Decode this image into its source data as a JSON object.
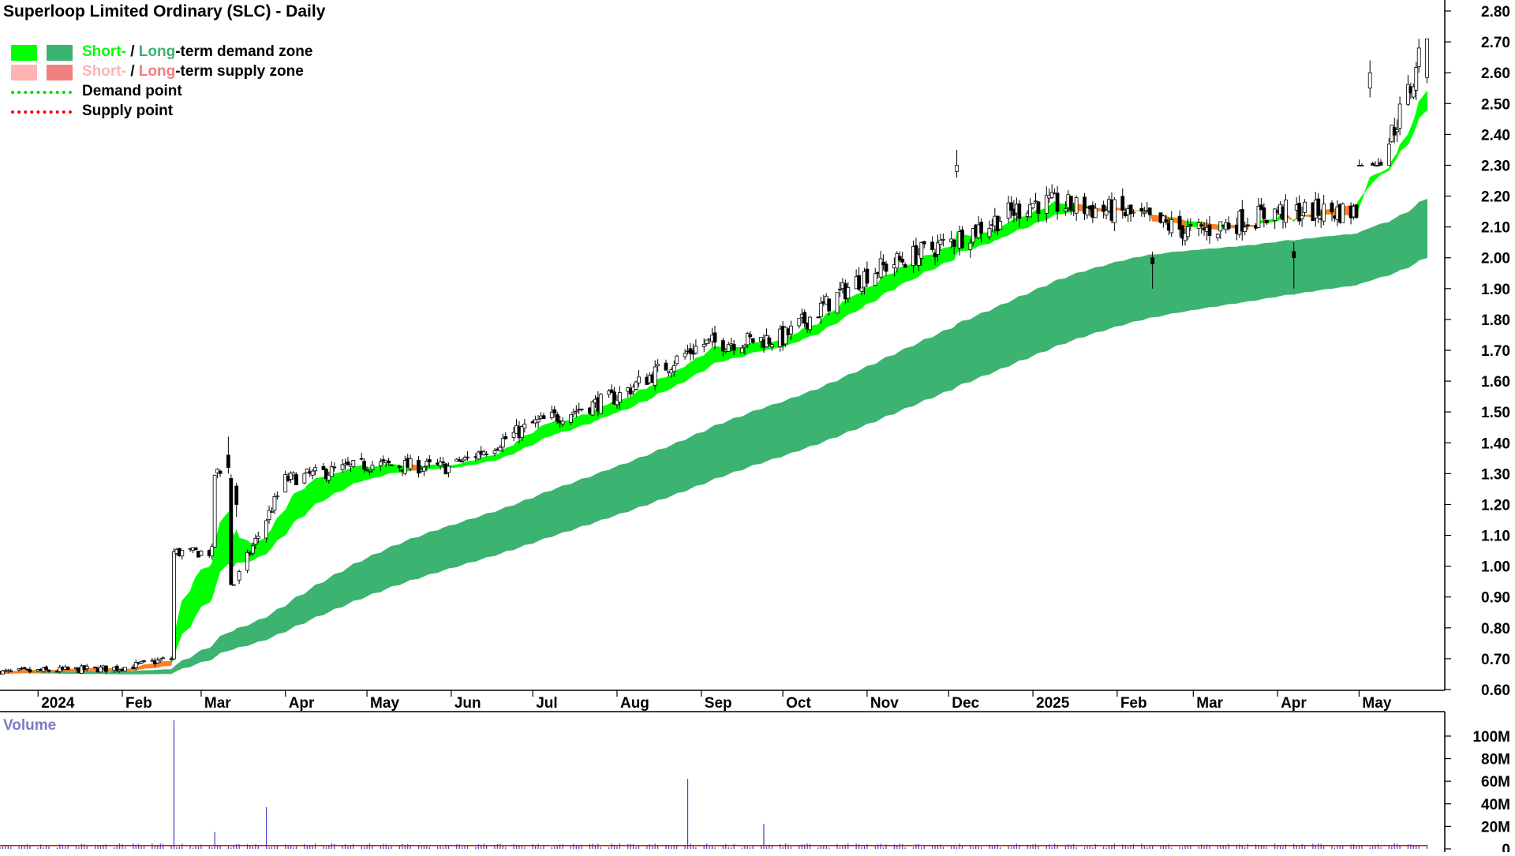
{
  "title": "Superloop Limited Ordinary (SLC) - Daily",
  "legend": {
    "demand_zone": {
      "short": "Short-",
      "sep": " / ",
      "long": "Long",
      "rest": "-term demand zone",
      "short_color": "#00ff00",
      "long_color": "#3cb371"
    },
    "supply_zone": {
      "short": "Short-",
      "sep": " / ",
      "long": "Long",
      "rest": "-term supply zone",
      "short_color": "#ffb3b3",
      "long_color": "#f08080"
    },
    "demand_point": {
      "label": "Demand point",
      "color": "#00dd00"
    },
    "supply_point": {
      "label": "Supply point",
      "color": "#ff0000"
    }
  },
  "volume_label": "Volume",
  "colors": {
    "short_demand": "#00ff00",
    "long_demand": "#3cb371",
    "supply_band": "#ff7f27",
    "volume_bar": "#4040c0",
    "volume_line": "#ff0000",
    "volume_label": "#7b7bc4"
  },
  "chart_data": [
    {
      "type": "candlestick",
      "title": "Superloop Limited Ordinary (SLC) - Daily",
      "x_tick_labels": [
        "2024",
        "Feb",
        "Mar",
        "Apr",
        "May",
        "Jun",
        "Jul",
        "Aug",
        "Sep",
        "Oct",
        "Nov",
        "Dec",
        "2025",
        "Feb",
        "Mar",
        "Apr",
        "May"
      ],
      "y_tick_labels": [
        "2.80",
        "2.70",
        "2.60",
        "2.50",
        "2.40",
        "2.30",
        "2.20",
        "2.10",
        "2.00",
        "1.90",
        "1.80",
        "1.70",
        "1.60",
        "1.50",
        "1.40",
        "1.30",
        "1.20",
        "1.10",
        "1.00",
        "0.90",
        "0.80",
        "0.70",
        "0.60"
      ],
      "ylim": [
        0.58,
        2.82
      ],
      "grid": false,
      "legend_position": "top-left",
      "price_path": {
        "months": [
          "2024-01",
          "2024-02",
          "2024-03",
          "2024-04",
          "2024-05",
          "2024-06",
          "2024-07",
          "2024-08",
          "2024-09",
          "2024-10",
          "2024-11",
          "2024-12",
          "2025-01",
          "2025-02",
          "2025-03",
          "2025-04",
          "2025-05"
        ],
        "month_close": [
          0.67,
          0.72,
          1.28,
          1.33,
          1.32,
          1.46,
          1.55,
          1.72,
          1.74,
          1.95,
          2.05,
          2.18,
          2.15,
          2.08,
          2.15,
          2.15,
          2.62
        ],
        "month_high": [
          0.7,
          1.06,
          1.42,
          1.38,
          1.46,
          1.65,
          1.64,
          1.82,
          1.85,
          2.08,
          2.2,
          2.35,
          2.3,
          2.24,
          2.2,
          2.22,
          2.71
        ],
        "month_low": [
          0.65,
          0.66,
          0.94,
          1.24,
          1.28,
          1.34,
          1.41,
          1.48,
          1.63,
          1.64,
          1.82,
          2.0,
          2.02,
          1.9,
          2.0,
          1.9,
          2.3
        ],
        "last_close": 2.68
      },
      "short_term_zone": {
        "start": 0.63,
        "end_upper": 2.54,
        "end_lower": 2.48
      },
      "long_term_zone": {
        "start": 0.63,
        "end_upper": 2.19,
        "end_lower": 2.0
      }
    },
    {
      "type": "bar",
      "title": "Volume",
      "y_tick_labels": [
        "100M",
        "80M",
        "60M",
        "40M",
        "20M",
        "0"
      ],
      "ylim": [
        0,
        120
      ],
      "unit": "M",
      "spikes": [
        {
          "date": "2024-02-20",
          "value": 114
        },
        {
          "date": "2024-03-06",
          "value": 15
        },
        {
          "date": "2024-03-25",
          "value": 37
        },
        {
          "date": "2024-08-27",
          "value": 62
        },
        {
          "date": "2024-09-24",
          "value": 22
        }
      ],
      "typical_volume": 3
    }
  ]
}
